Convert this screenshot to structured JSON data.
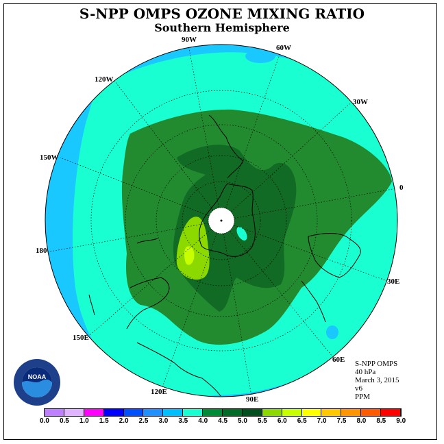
{
  "title": "S-NPP OMPS OZONE MIXING RATIO",
  "subtitle": "Southern Hemisphere",
  "longitude_labels": [
    "90W",
    "60W",
    "30W",
    "0",
    "30E",
    "60E",
    "90E",
    "120E",
    "150E",
    "180",
    "150W",
    "120W"
  ],
  "info": {
    "instrument": "S-NPP OMPS",
    "level": "40 hPa",
    "date": "March 3, 2015",
    "version": "v6",
    "units": "PPM"
  },
  "logo": {
    "text": "NOAA",
    "icon": "noaa-logo-icon"
  },
  "colorbar": {
    "ticks": [
      "0.0",
      "0.5",
      "1.0",
      "1.5",
      "2.0",
      "2.5",
      "3.0",
      "3.5",
      "4.0",
      "4.5",
      "5.0",
      "5.5",
      "6.0",
      "6.5",
      "7.0",
      "7.5",
      "8.0",
      "8.5",
      "9.0"
    ],
    "colors": [
      "#bf80ff",
      "#e0b3ff",
      "#ff00ff",
      "#0000ff",
      "#0050ff",
      "#1e90ff",
      "#00bfff",
      "#19ffd2",
      "#008c36",
      "#006c28",
      "#004f1d",
      "#8cd900",
      "#c8ff00",
      "#ffff00",
      "#ffc800",
      "#ff9600",
      "#ff5a00",
      "#ff0000",
      "#8b4a2b"
    ]
  },
  "map_colors": {
    "ring_3_0": "#19c8ff",
    "fill_3_5": "#19ffd2",
    "fill_4_0": "#228b30",
    "fill_4_5": "#116b24",
    "fill_5_5": "#8cd900",
    "fill_6_0": "#c8ff00",
    "pole": "#ffffff"
  }
}
